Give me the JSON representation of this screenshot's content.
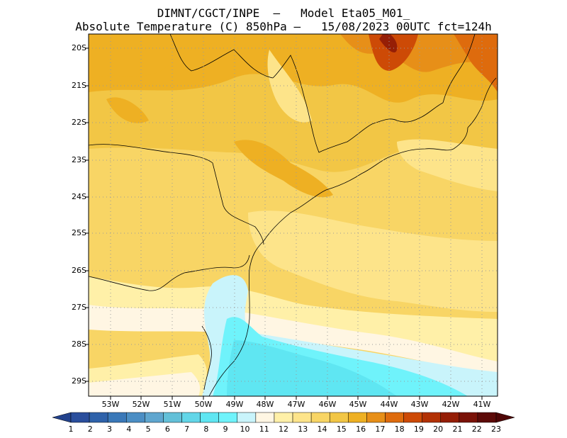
{
  "title_line1": "DIMNT/CGCT/INPE  –   Model Eta05_M01_",
  "title_line2": "Absolute Temperature (C) 850hPa –   15/08/2023 00UTC fct=124h",
  "lat_labels": [
    "20S",
    "21S",
    "22S",
    "23S",
    "24S",
    "25S",
    "26S",
    "27S",
    "28S",
    "29S"
  ],
  "lon_labels": [
    "53W",
    "52W",
    "51W",
    "50W",
    "49W",
    "48W",
    "47W",
    "46W",
    "45W",
    "44W",
    "43W",
    "42W",
    "41W"
  ],
  "colorbar": {
    "labels": [
      "1",
      "2",
      "3",
      "4",
      "5",
      "6",
      "7",
      "8",
      "9",
      "10",
      "11",
      "12",
      "13",
      "14",
      "15",
      "16",
      "17",
      "18",
      "19",
      "20",
      "21",
      "22",
      "23"
    ],
    "colors": [
      "#2a4e9c",
      "#2f62aa",
      "#3a78b8",
      "#4b8ec4",
      "#5fa6cf",
      "#63c0d8",
      "#62d6e8",
      "#5fe6f2",
      "#6ff3fb",
      "#c9f4fb",
      "#fff6e3",
      "#fff0a8",
      "#fde48a",
      "#f8d565",
      "#f2c645",
      "#eeb023",
      "#e78f18",
      "#de6b0d",
      "#cd4a06",
      "#b23104",
      "#951e06",
      "#7a1208",
      "#5c0a08"
    ],
    "low_arrow_color": "#22428c",
    "high_arrow_color": "#4e0606"
  }
}
